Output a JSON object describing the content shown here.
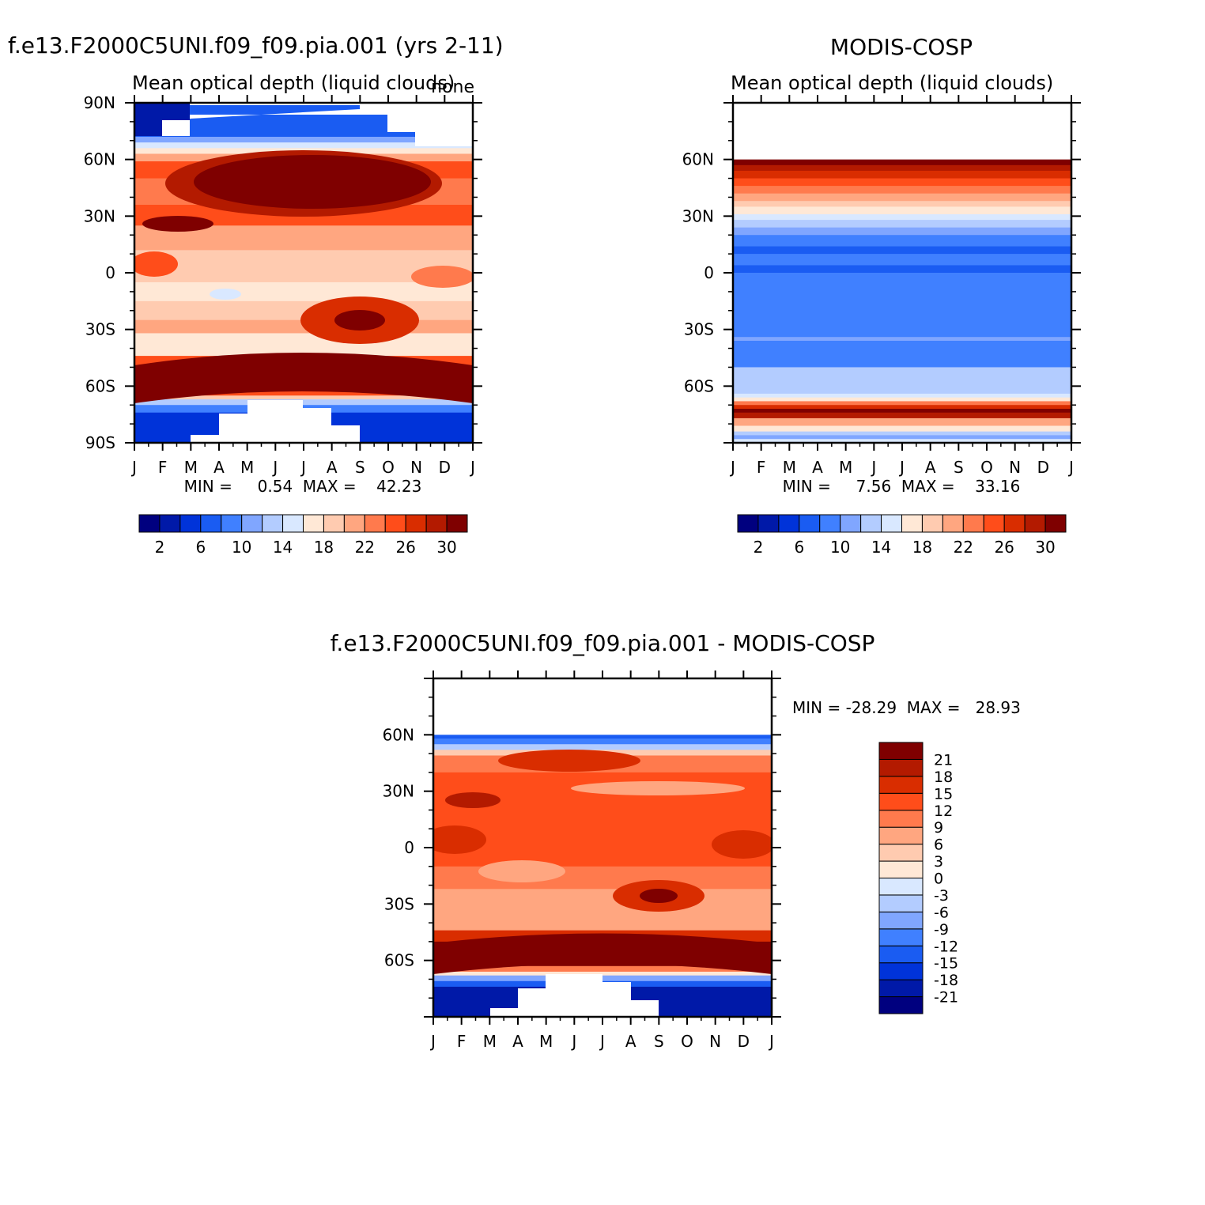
{
  "chart_data": [
    {
      "type": "heatmap",
      "id": "model",
      "title": "f.e13.F2000C5UNI.f09_f09.pia.001 (yrs 2-11)",
      "subtitle": "Mean optical depth (liquid clouds)",
      "units": "none",
      "stats_label": "MIN =     0.54  MAX =    42.23",
      "min": 0.54,
      "max": 42.23,
      "x_ticks": [
        "J",
        "F",
        "M",
        "A",
        "M",
        "J",
        "J",
        "A",
        "S",
        "O",
        "N",
        "D",
        "J"
      ],
      "y_ticks": [
        "90N",
        "60N",
        "30N",
        "0",
        "30S",
        "60S",
        "90S"
      ],
      "ylim": [
        -90,
        90
      ],
      "colorbar_labels": [
        "2",
        "6",
        "10",
        "14",
        "18",
        "22",
        "26",
        "30"
      ]
    },
    {
      "type": "heatmap",
      "id": "obs",
      "title": "MODIS-COSP",
      "subtitle": "Mean optical depth (liquid clouds)",
      "stats_label": "MIN =     7.56  MAX =    33.16",
      "min": 7.56,
      "max": 33.16,
      "x_ticks": [
        "J",
        "F",
        "M",
        "A",
        "M",
        "J",
        "J",
        "A",
        "S",
        "O",
        "N",
        "D",
        "J"
      ],
      "y_ticks": [
        "60N",
        "30N",
        "0",
        "30S",
        "60S"
      ],
      "ylim": [
        -90,
        90
      ],
      "colorbar_labels": [
        "2",
        "6",
        "10",
        "14",
        "18",
        "22",
        "26",
        "30"
      ]
    },
    {
      "type": "heatmap",
      "id": "diff",
      "title": "f.e13.F2000C5UNI.f09_f09.pia.001 - MODIS-COSP",
      "stats_label": "MIN = -28.29  MAX =   28.93",
      "min": -28.29,
      "max": 28.93,
      "x_ticks": [
        "J",
        "F",
        "M",
        "A",
        "M",
        "J",
        "J",
        "A",
        "S",
        "O",
        "N",
        "D",
        "J"
      ],
      "y_ticks": [
        "60N",
        "30N",
        "0",
        "30S",
        "60S"
      ],
      "ylim": [
        -90,
        90
      ],
      "colorbar_labels": [
        "21",
        "18",
        "15",
        "12",
        "9",
        "6",
        "3",
        "0",
        "-3",
        "-6",
        "-9",
        "-12",
        "-15",
        "-18",
        "-21"
      ]
    }
  ],
  "palette": [
    "#00007f",
    "#0019a8",
    "#0033d9",
    "#1a5cf2",
    "#4080ff",
    "#80a6ff",
    "#b3ccff",
    "#d9e8ff",
    "#ffe8d6",
    "#ffcbb0",
    "#ffa680",
    "#ff7a4d",
    "#ff4d1a",
    "#d92d00",
    "#b31a00",
    "#7f0000"
  ]
}
